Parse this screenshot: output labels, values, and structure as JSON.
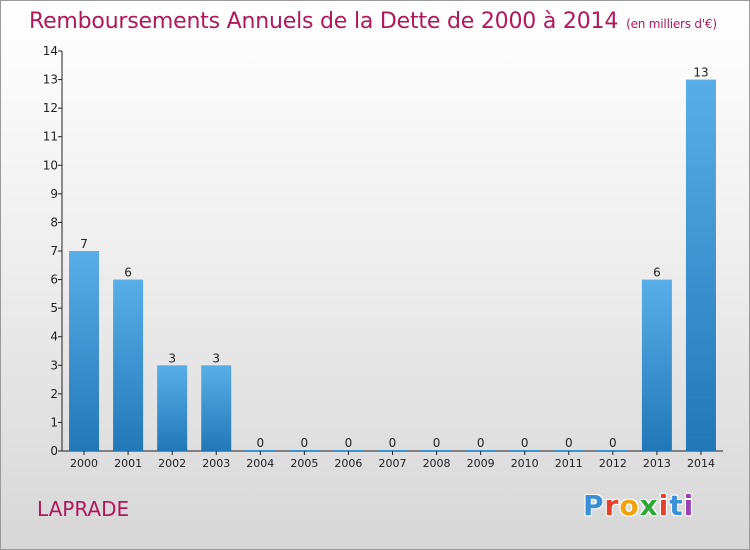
{
  "header": {
    "title": "Remboursements Annuels de la Dette de 2000 à 2014",
    "subtitle": "(en milliers d'€)"
  },
  "footer": {
    "location": "LAPRADE",
    "logo": {
      "letters": [
        "P",
        "r",
        "o",
        "x",
        "i",
        "t",
        "i"
      ],
      "colors": [
        "#3a8fd9",
        "#e6412c",
        "#f2a20f",
        "#2ea836",
        "#e6412c",
        "#3a8fd9",
        "#9b3fb5"
      ]
    }
  },
  "chart_data": {
    "type": "bar",
    "categories": [
      "2000",
      "2001",
      "2002",
      "2003",
      "2004",
      "2005",
      "2006",
      "2007",
      "2008",
      "2009",
      "2010",
      "2011",
      "2012",
      "2013",
      "2014"
    ],
    "values": [
      7,
      6,
      3,
      3,
      0,
      0,
      0,
      0,
      0,
      0,
      0,
      0,
      0,
      6,
      13
    ],
    "data_labels": [
      "7",
      "6",
      "3",
      "3",
      "0",
      "0",
      "0",
      "0",
      "0",
      "0",
      "0",
      "0",
      "0",
      "6",
      "13"
    ],
    "ylim": [
      0,
      14
    ],
    "yticks": [
      "0",
      "1",
      "2",
      "3",
      "4",
      "5",
      "6",
      "7",
      "8",
      "9",
      "10",
      "11",
      "12",
      "13",
      "14"
    ],
    "grid": false,
    "colors": {
      "bar_light": "#5aaee8",
      "bar_dark": "#2277b6",
      "axis": "#222222",
      "text": "#222222"
    }
  }
}
